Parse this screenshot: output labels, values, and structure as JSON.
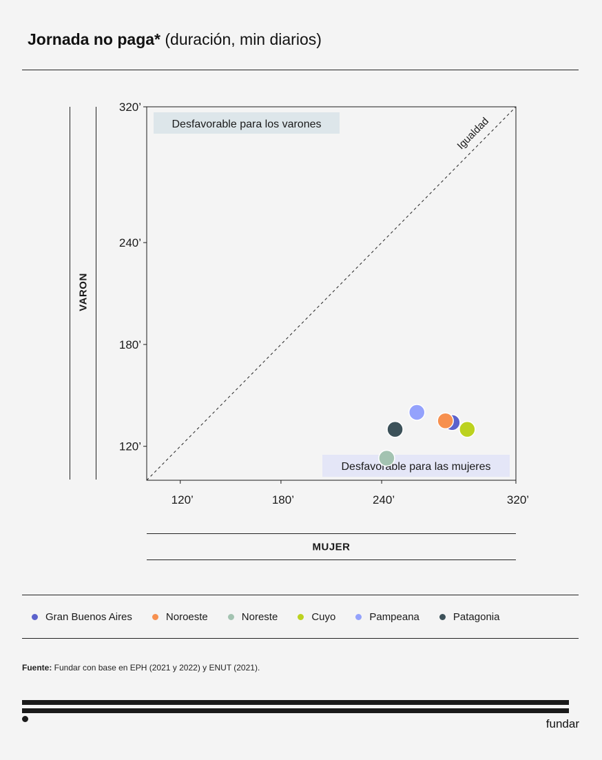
{
  "header": {
    "title_bold": "Jornada no paga*",
    "title_rest": "(duración, min diarios)"
  },
  "chart_data": {
    "type": "scatter",
    "title": "Jornada no paga* (duración, min diarios)",
    "xlabel": "MUJER",
    "ylabel": "VARON",
    "xlim": [
      100,
      320
    ],
    "ylim": [
      100,
      320
    ],
    "x_ticks": [
      120,
      180,
      240,
      320
    ],
    "x_tick_labels": [
      "120’",
      "180’",
      "240’",
      "320’"
    ],
    "y_ticks": [
      120,
      180,
      240,
      320
    ],
    "y_tick_labels": [
      "120’",
      "180’",
      "240’",
      "320’"
    ],
    "reference_line_label": "Igualdad",
    "annotations": {
      "upper_left": "Desfavorable para los varones",
      "lower_right": "Desfavorable para las mujeres"
    },
    "series": [
      {
        "name": "Gran Buenos Aires",
        "color": "#5b62cc",
        "x": 282,
        "y": 134
      },
      {
        "name": "Noroeste",
        "color": "#f7904f",
        "x": 278,
        "y": 135
      },
      {
        "name": "Noreste",
        "color": "#a3c3b1",
        "x": 243,
        "y": 113
      },
      {
        "name": "Cuyo",
        "color": "#bcd21f",
        "x": 291,
        "y": 130
      },
      {
        "name": "Pampeana",
        "color": "#94a2fc",
        "x": 261,
        "y": 140
      },
      {
        "name": "Patagonia",
        "color": "#3c5159",
        "x": 248,
        "y": 130
      }
    ]
  },
  "legend": {
    "items": [
      {
        "label": "Gran Buenos Aires",
        "color": "#5b62cc"
      },
      {
        "label": "Noroeste",
        "color": "#f7904f"
      },
      {
        "label": "Noreste",
        "color": "#a3c3b1"
      },
      {
        "label": "Cuyo",
        "color": "#bcd21f"
      },
      {
        "label": "Pampeana",
        "color": "#94a2fc"
      },
      {
        "label": "Patagonia",
        "color": "#3c5159"
      }
    ]
  },
  "footer": {
    "source_label": "Fuente:",
    "source_text": " Fundar con base en EPH (2021 y 2022) y ENUT (2021).",
    "brand": "fundar"
  }
}
